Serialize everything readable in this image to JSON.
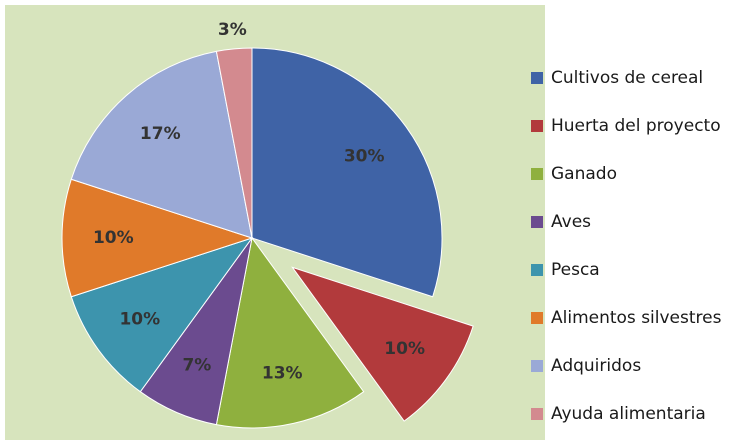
{
  "chart_data": {
    "type": "pie",
    "categories": [
      "Cultivos de cereal",
      "Huerta del proyecto",
      "Ganado",
      "Aves",
      "Pesca",
      "Alimentos silvestres",
      "Adquiridos",
      "Ayuda alimentaria"
    ],
    "values": [
      30,
      10,
      13,
      7,
      10,
      10,
      17,
      3
    ],
    "value_labels": [
      "30%",
      "10%",
      "13%",
      "7%",
      "10%",
      "10%",
      "17%",
      "3%"
    ],
    "colors": [
      "#3f63a6",
      "#b23a3c",
      "#8fb03e",
      "#6b4b8f",
      "#3d94ad",
      "#e07a2a",
      "#9aa9d6",
      "#d38a8f"
    ],
    "exploded": [
      "Huerta del proyecto"
    ],
    "legend": "right"
  }
}
